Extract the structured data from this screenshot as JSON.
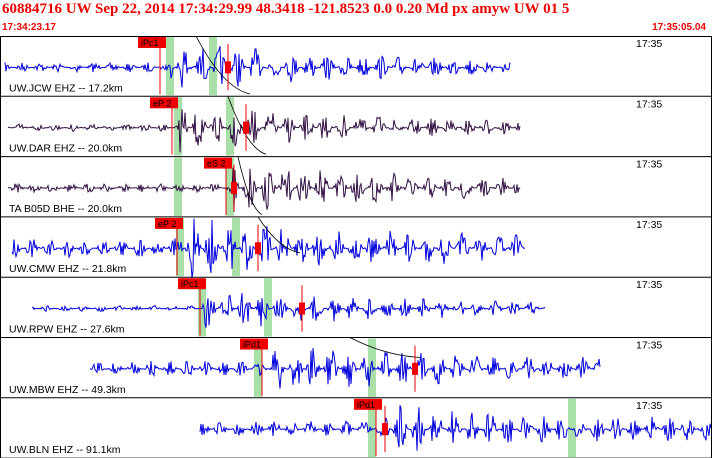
{
  "header": {
    "title": "60884716 UW Sep 22, 2014 17:34:29.99   48.3418 -121.8523  0.0 0.20 Md px amyw UW 01   5",
    "time_start": "17:34:23.17",
    "time_end": "17:35:05.04"
  },
  "colors": {
    "header_text": "#ee0000",
    "trace_blue": "#0000dd",
    "trace_dark": "#331144",
    "pick_red": "#ee0000",
    "window_green": "#a8e0a8"
  },
  "traces": [
    {
      "station": "UW.JCW EHZ -- 17.2km",
      "time_label": "17:35",
      "pick": "iPc1",
      "color": "blue"
    },
    {
      "station": "UW.DAR EHZ -- 20.0km",
      "time_label": "17:35",
      "pick": "eP 2",
      "color": "dark"
    },
    {
      "station": "TA B05D BHE -- 20.0km",
      "time_label": "17:35",
      "pick": "eS 2",
      "color": "dark"
    },
    {
      "station": "UW.CMW EHZ -- 21.8km",
      "time_label": "17:35",
      "pick": "eP 2",
      "color": "blue"
    },
    {
      "station": "UW.RPW EHZ -- 27.6km",
      "time_label": "17:35",
      "pick": "iPc1",
      "color": "blue"
    },
    {
      "station": "UW.MBW EHZ -- 49.3km",
      "time_label": "17:35",
      "pick": "iPd1",
      "color": "blue"
    },
    {
      "station": "UW.BLN EHZ -- 91.1km",
      "time_label": "17:35",
      "pick": "iPd1",
      "color": "blue"
    }
  ]
}
